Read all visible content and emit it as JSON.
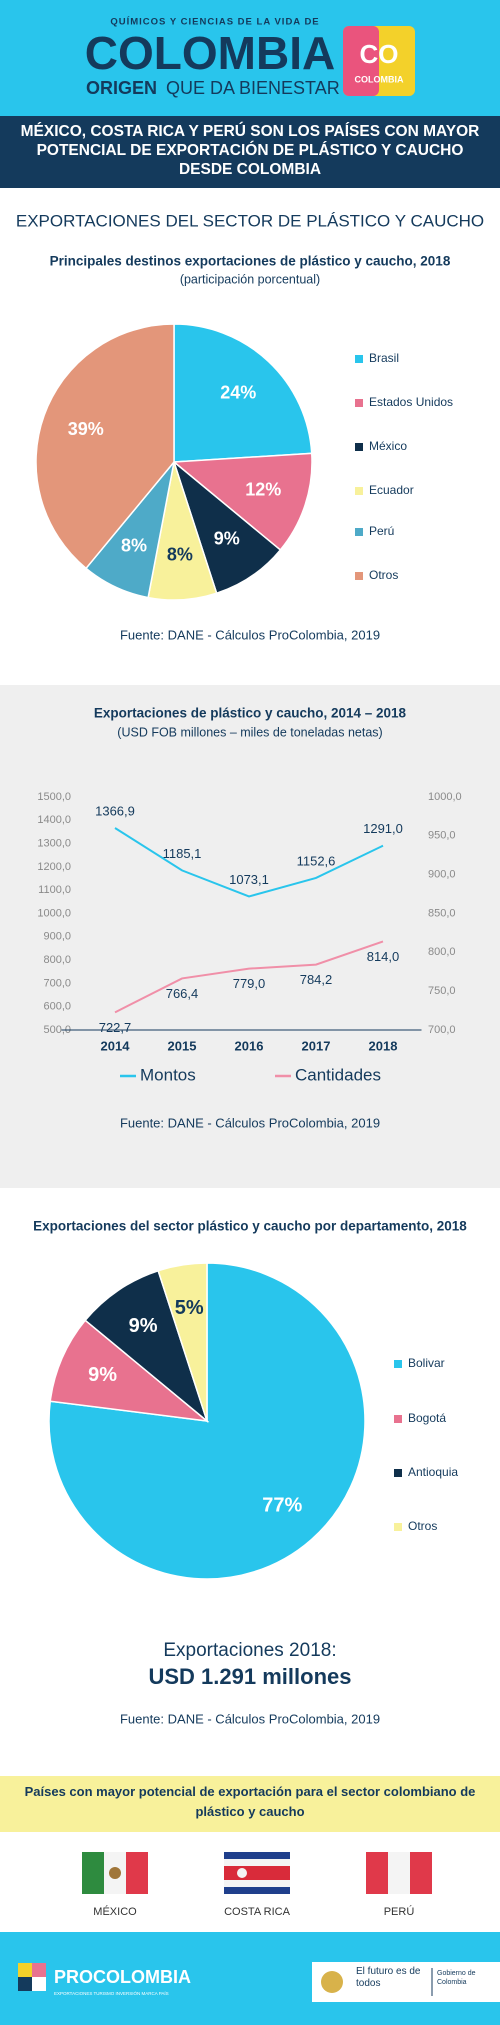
{
  "header": {
    "tagline": "QUÍMICOS Y CIENCIAS DE LA VIDA DE",
    "brand": "COLOMBIA",
    "slogan_strong": "ORIGEN",
    "slogan": "QUE DA BIENESTAR",
    "badge_top": "CO",
    "badge_bottom": "COLOMBIA"
  },
  "headline": "MÉXICO, COSTA RICA Y PERÚ SON LOS PAÍSES CON MAYOR POTENCIAL DE EXPORTACIÓN DE PLÁSTICO Y CAUCHO DESDE COLOMBIA",
  "section_title": "EXPORTACIONES DEL SECTOR DE PLÁSTICO Y CAUCHO",
  "chart_data": [
    {
      "type": "pie",
      "title": "Principales destinos exportaciones de plástico y caucho, 2018",
      "subtitle": "(participación porcentual)",
      "categories": [
        "Brasil",
        "Estados Unidos",
        "México",
        "Ecuador",
        "Perú",
        "Otros"
      ],
      "values": [
        24,
        12,
        9,
        8,
        8,
        39
      ],
      "value_labels": [
        "24%",
        "12%",
        "9%",
        "8%",
        "8%",
        "39%"
      ],
      "colors": [
        "#29c5ec",
        "#e8728f",
        "#0f2f4a",
        "#f8f19b",
        "#4eaac8",
        "#e3967a"
      ],
      "legend": "right",
      "source": "Fuente: DANE - Cálculos ProColombia, 2019"
    },
    {
      "type": "line",
      "title": "Exportaciones de plástico y caucho, 2014 – 2018",
      "subtitle": "(USD FOB millones – miles de toneladas netas)",
      "categories": [
        "2014",
        "2015",
        "2016",
        "2017",
        "2018"
      ],
      "series": [
        {
          "name": "Montos",
          "color": "#29c5ec",
          "values": [
            1366.9,
            1185.1,
            1073.1,
            1152.6,
            1291.0
          ],
          "value_labels": [
            "1366,9",
            "1185,1",
            "1073,1",
            "1152,6",
            "1291,0"
          ]
        },
        {
          "name": "Cantidades",
          "color": "#f08fa8",
          "axis": "y2",
          "values": [
            722.7,
            766.4,
            779.0,
            784.2,
            814.0
          ],
          "value_labels": [
            "722,7",
            "766,4",
            "779,0",
            "784,2",
            "814,0"
          ]
        }
      ],
      "ylim": [
        500,
        1500
      ],
      "yticks": [
        {
          "value": 500,
          "label": "500,0"
        },
        {
          "value": 600,
          "label": "600,0"
        },
        {
          "value": 700,
          "label": "700,0"
        },
        {
          "value": 800,
          "label": "800,0"
        },
        {
          "value": 900,
          "label": "900,0"
        },
        {
          "value": 1000,
          "label": "1000,0"
        },
        {
          "value": 1100,
          "label": "1100,0"
        },
        {
          "value": 1200,
          "label": "1200,0"
        },
        {
          "value": 1300,
          "label": "1300,0"
        },
        {
          "value": 1400,
          "label": "1400,0"
        },
        {
          "value": 1500,
          "label": "1500,0"
        }
      ],
      "y2lim": [
        700,
        1000
      ],
      "y2ticks": [
        {
          "value": 700,
          "label": "700,0"
        },
        {
          "value": 750,
          "label": "750,0"
        },
        {
          "value": 800,
          "label": "800,0"
        },
        {
          "value": 850,
          "label": "850,0"
        },
        {
          "value": 900,
          "label": "900,0"
        },
        {
          "value": 950,
          "label": "950,0"
        },
        {
          "value": 1000,
          "label": "1000,0"
        }
      ],
      "grid": false,
      "legend": "bottom",
      "source": "Fuente: DANE - Cálculos ProColombia, 2019"
    },
    {
      "type": "pie",
      "title": "Exportaciones del sector plástico y caucho por departamento, 2018",
      "categories": [
        "Bolivar",
        "Bogotá",
        "Antioquia",
        "Otros"
      ],
      "values": [
        77,
        9,
        9,
        5
      ],
      "value_labels": [
        "77%",
        "9%",
        "9%",
        "5%"
      ],
      "colors": [
        "#29c5ec",
        "#e8728f",
        "#0f2f4a",
        "#f8f19b"
      ],
      "legend": "right",
      "source": "Fuente: DANE - Cálculos ProColombia, 2019"
    }
  ],
  "total": {
    "label": "Exportaciones 2018:",
    "value": "USD 1.291 millones"
  },
  "countries": {
    "title": "Países con mayor potencial de exportación para el sector colombiano de plástico y caucho",
    "items": [
      "MÉXICO",
      "COSTA RICA",
      "PERÚ"
    ]
  },
  "footer": {
    "brand": "PROCOLOMBIA",
    "sub": "EXPORTACIONES TURISMO INVERSIÓN MARCA PAÍS",
    "gov_main": "El futuro es de todos",
    "gov_side": "Gobierno de Colombia"
  }
}
